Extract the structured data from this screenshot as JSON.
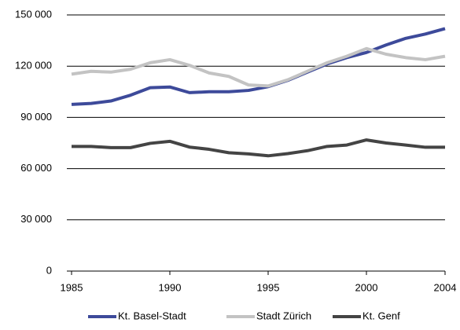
{
  "chart_data": {
    "type": "line",
    "x": [
      1985,
      1986,
      1987,
      1988,
      1989,
      1990,
      1991,
      1992,
      1993,
      1994,
      1995,
      1996,
      1997,
      1998,
      1999,
      2000,
      2001,
      2002,
      2003,
      2004
    ],
    "series": [
      {
        "name": "Kt. Basel-Stadt",
        "color": "#3d4a9a",
        "values": [
          97600,
          98200,
          99600,
          103000,
          107400,
          107800,
          104500,
          105000,
          105000,
          105800,
          108000,
          111700,
          116500,
          121300,
          125000,
          128000,
          132400,
          136300,
          138800,
          142000
        ]
      },
      {
        "name": "Stadt Zürich",
        "color": "#c3c3c3",
        "values": [
          115300,
          117000,
          116500,
          118200,
          122000,
          123800,
          120500,
          116000,
          114000,
          109000,
          108400,
          112000,
          117000,
          122000,
          125800,
          130300,
          127000,
          125000,
          123800,
          125800
        ]
      },
      {
        "name": "Kt. Genf",
        "color": "#444444",
        "values": [
          73000,
          73000,
          72300,
          72300,
          74800,
          76000,
          72600,
          71300,
          69300,
          68600,
          67500,
          68800,
          70500,
          73000,
          73800,
          76800,
          75000,
          73800,
          72500,
          72500
        ]
      }
    ],
    "xlim": [
      1985,
      2004
    ],
    "xticks": [
      1985,
      1990,
      1995,
      2000,
      2004
    ],
    "ylim": [
      0,
      150000
    ],
    "yticks": [
      0,
      {
        "value": 30000,
        "label": "30 000"
      },
      {
        "value": 60000,
        "label": "60 000"
      },
      {
        "value": 90000,
        "label": "90 000"
      },
      {
        "value": 120000,
        "label": "120 000"
      },
      {
        "value": 150000,
        "label": "150 000"
      }
    ],
    "grid": true,
    "legend": "bottom"
  }
}
